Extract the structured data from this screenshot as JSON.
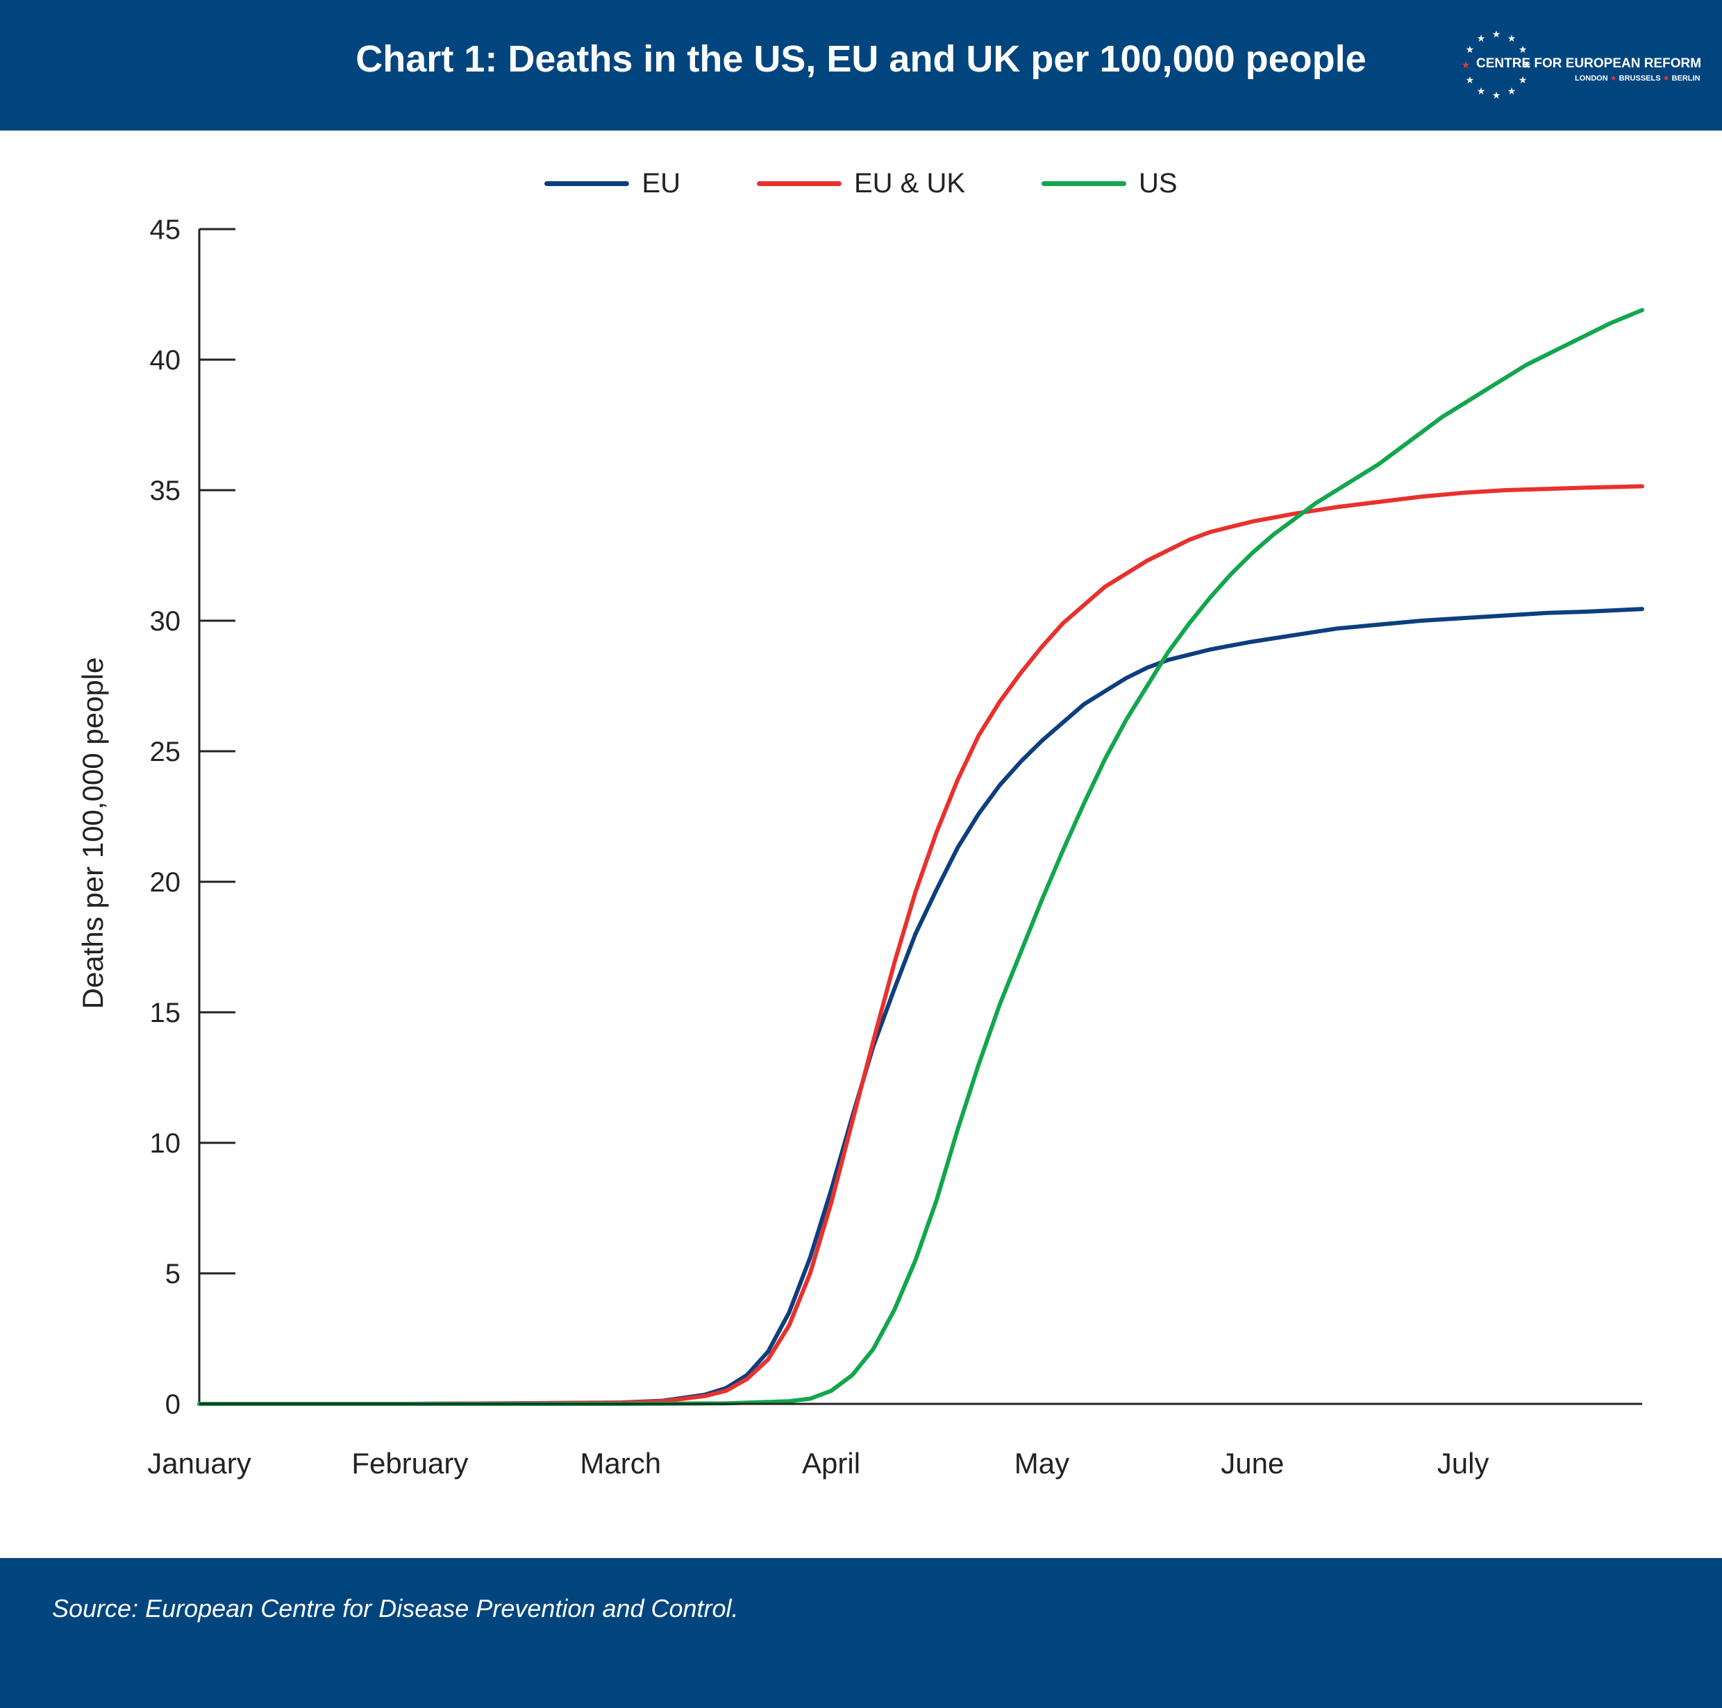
{
  "header": {
    "title": "Chart 1: Deaths in the US, EU and UK per 100,000 people"
  },
  "logo": {
    "name": "CENTRE FOR EUROPEAN REFORM",
    "cities": [
      "LONDON",
      "BRUSSELS",
      "BERLIN"
    ]
  },
  "footer": {
    "source": "Source: European Centre for Disease Prevention and Control."
  },
  "colors": {
    "header_bg": "#01457e",
    "EU": "#0d3f7e",
    "EU & UK": "#e8312d",
    "US": "#12a64d"
  },
  "chart_data": {
    "type": "line",
    "title": "Chart 1: Deaths in the US, EU and UK per 100,000 people",
    "xlabel": "",
    "ylabel": "Deaths per 100,000 people",
    "ylim": [
      0,
      45
    ],
    "yticks": [
      0,
      5,
      10,
      15,
      20,
      25,
      30,
      35,
      40,
      45
    ],
    "xtick_labels": [
      "January",
      "February",
      "March",
      "April",
      "May",
      "June",
      "July"
    ],
    "x_unit": "month (1 = start of January)",
    "xlim": [
      1.0,
      7.85
    ],
    "grid": false,
    "legend_position": "top-center",
    "series": [
      {
        "name": "EU",
        "x": [
          1.0,
          2.0,
          2.5,
          3.0,
          3.2,
          3.4,
          3.5,
          3.6,
          3.7,
          3.8,
          3.9,
          4.0,
          4.1,
          4.2,
          4.3,
          4.4,
          4.5,
          4.6,
          4.7,
          4.8,
          4.9,
          5.0,
          5.1,
          5.2,
          5.3,
          5.4,
          5.5,
          5.6,
          5.7,
          5.8,
          5.9,
          6.0,
          6.2,
          6.4,
          6.6,
          6.8,
          7.0,
          7.2,
          7.4,
          7.6,
          7.85
        ],
        "y": [
          0,
          0,
          0.02,
          0.05,
          0.12,
          0.35,
          0.6,
          1.1,
          2.0,
          3.5,
          5.6,
          8.2,
          11.0,
          13.7,
          15.9,
          18.0,
          19.7,
          21.3,
          22.6,
          23.7,
          24.6,
          25.4,
          26.1,
          26.8,
          27.3,
          27.8,
          28.2,
          28.5,
          28.7,
          28.9,
          29.05,
          29.2,
          29.45,
          29.7,
          29.85,
          30.0,
          30.1,
          30.2,
          30.3,
          30.35,
          30.45
        ]
      },
      {
        "name": "EU & UK",
        "x": [
          1.0,
          2.0,
          2.5,
          3.0,
          3.2,
          3.4,
          3.5,
          3.6,
          3.7,
          3.8,
          3.9,
          4.0,
          4.1,
          4.2,
          4.3,
          4.4,
          4.5,
          4.6,
          4.7,
          4.8,
          4.9,
          5.0,
          5.1,
          5.2,
          5.3,
          5.4,
          5.5,
          5.6,
          5.7,
          5.8,
          5.9,
          6.0,
          6.2,
          6.4,
          6.6,
          6.8,
          7.0,
          7.2,
          7.4,
          7.6,
          7.85
        ],
        "y": [
          0,
          0,
          0.02,
          0.04,
          0.1,
          0.3,
          0.5,
          0.95,
          1.7,
          3.0,
          5.0,
          7.7,
          10.8,
          13.9,
          16.9,
          19.6,
          21.9,
          23.9,
          25.6,
          26.9,
          28.0,
          29.0,
          29.9,
          30.6,
          31.3,
          31.8,
          32.3,
          32.7,
          33.1,
          33.4,
          33.6,
          33.8,
          34.1,
          34.35,
          34.55,
          34.75,
          34.9,
          35.0,
          35.05,
          35.1,
          35.15
        ]
      },
      {
        "name": "US",
        "x": [
          1.0,
          2.0,
          3.0,
          3.5,
          3.8,
          3.9,
          4.0,
          4.1,
          4.2,
          4.3,
          4.4,
          4.5,
          4.6,
          4.7,
          4.8,
          4.9,
          5.0,
          5.1,
          5.2,
          5.3,
          5.4,
          5.5,
          5.6,
          5.7,
          5.8,
          5.9,
          6.0,
          6.1,
          6.2,
          6.3,
          6.4,
          6.5,
          6.6,
          6.7,
          6.8,
          6.9,
          7.0,
          7.1,
          7.2,
          7.3,
          7.4,
          7.5,
          7.6,
          7.7,
          7.85
        ],
        "y": [
          0,
          0,
          0,
          0.02,
          0.1,
          0.2,
          0.5,
          1.1,
          2.1,
          3.6,
          5.5,
          7.8,
          10.5,
          13.0,
          15.3,
          17.3,
          19.3,
          21.2,
          23.0,
          24.7,
          26.2,
          27.5,
          28.8,
          29.9,
          30.9,
          31.8,
          32.6,
          33.3,
          33.9,
          34.5,
          35.0,
          35.5,
          36.0,
          36.6,
          37.2,
          37.8,
          38.3,
          38.8,
          39.3,
          39.8,
          40.2,
          40.6,
          41.0,
          41.4,
          41.9
        ]
      }
    ]
  }
}
